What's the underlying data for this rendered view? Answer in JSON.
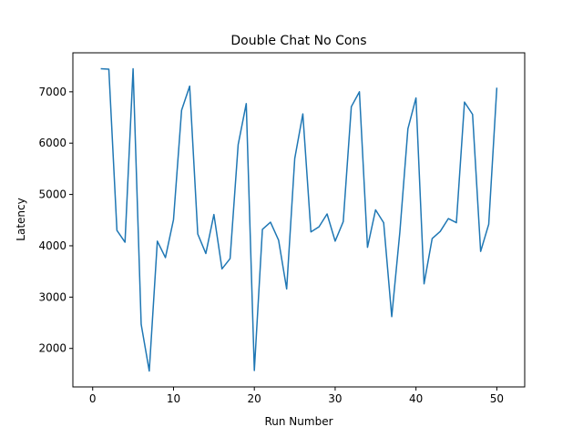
{
  "chart_data": {
    "type": "line",
    "title": "Double Chat No Cons",
    "xlabel": "Run Number",
    "ylabel": "Latency",
    "xlim": [
      -2.45,
      53.45
    ],
    "ylim": [
      1250,
      7760
    ],
    "xticks": [
      0,
      10,
      20,
      30,
      40,
      50
    ],
    "yticks": [
      2000,
      3000,
      4000,
      5000,
      6000,
      7000
    ],
    "grid": false,
    "series": [
      {
        "color": "#1f77b4",
        "x": [
          1,
          2,
          3,
          4,
          5,
          6,
          7,
          8,
          9,
          10,
          11,
          12,
          13,
          14,
          15,
          16,
          17,
          18,
          19,
          20,
          21,
          22,
          23,
          24,
          25,
          26,
          27,
          28,
          29,
          30,
          31,
          32,
          33,
          34,
          35,
          36,
          37,
          38,
          39,
          40,
          41,
          42,
          43,
          44,
          45,
          46,
          47,
          48,
          49,
          50
        ],
        "y": [
          7450,
          7440,
          4300,
          4070,
          7450,
          2470,
          1560,
          4090,
          3770,
          4510,
          6640,
          7110,
          4230,
          3850,
          4610,
          3550,
          3750,
          5970,
          6770,
          1570,
          4320,
          4460,
          4110,
          3160,
          5700,
          6570,
          4270,
          4370,
          4620,
          4090,
          4470,
          6710,
          7000,
          3970,
          4700,
          4450,
          2620,
          4260,
          6280,
          6880,
          3260,
          4140,
          4280,
          4530,
          4450,
          6800,
          6560,
          3890,
          4420,
          7080
        ]
      }
    ]
  }
}
